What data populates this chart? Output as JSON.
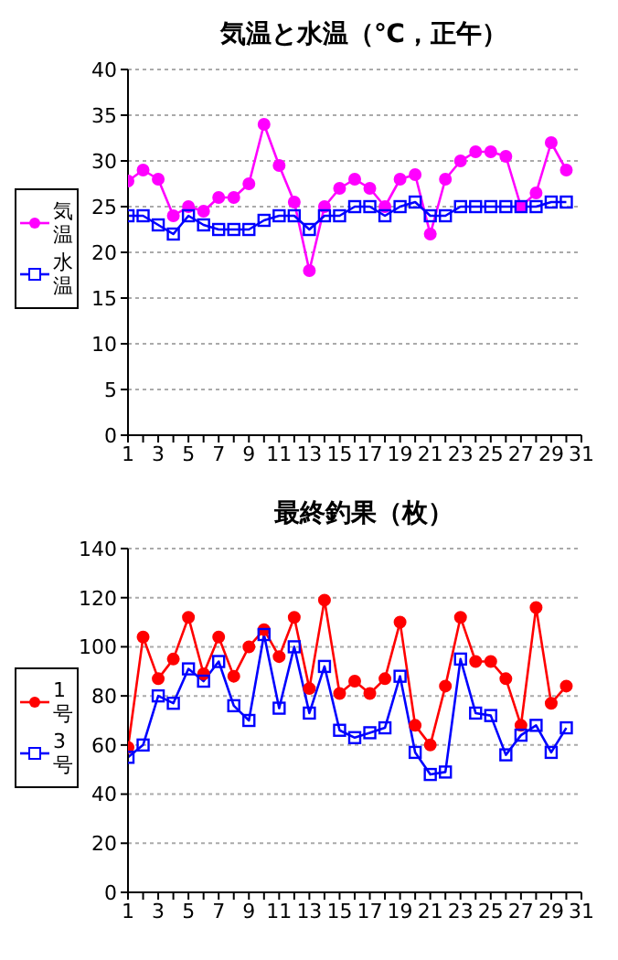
{
  "chart_data": [
    {
      "type": "line",
      "title": "気温と水温（℃，正午）",
      "x": [
        1,
        2,
        3,
        4,
        5,
        6,
        7,
        8,
        9,
        10,
        11,
        12,
        13,
        14,
        15,
        16,
        17,
        18,
        19,
        20,
        21,
        22,
        23,
        24,
        25,
        26,
        27,
        28,
        29,
        30
      ],
      "series": [
        {
          "name": "気温",
          "color": "#ff00ff",
          "marker": "circle",
          "values": [
            27.8,
            29,
            28,
            24,
            25,
            24.5,
            26,
            26,
            27.5,
            34,
            29.5,
            25.5,
            18,
            25,
            27,
            28,
            27,
            25,
            28,
            28.5,
            22,
            28,
            30,
            31,
            31,
            30.5,
            25,
            26.5,
            32,
            29
          ]
        },
        {
          "name": "水温",
          "color": "#0000ff",
          "marker": "square",
          "values": [
            24,
            24,
            23,
            22,
            24,
            23,
            22.5,
            22.5,
            22.5,
            23.5,
            24,
            24,
            22.5,
            24,
            24,
            25,
            25,
            24,
            25,
            25.5,
            24,
            24,
            25,
            25,
            25,
            25,
            25,
            25,
            25.5,
            25.5
          ]
        }
      ],
      "xlim": [
        1,
        31
      ],
      "xticks": [
        1,
        {
          "value": 2,
          "label": null
        },
        3,
        {
          "value": 4,
          "label": null
        },
        5,
        {
          "value": 6,
          "label": null
        },
        7,
        {
          "value": 8,
          "label": null
        },
        9,
        {
          "value": 10,
          "label": null
        },
        11,
        {
          "value": 12,
          "label": null
        },
        13,
        {
          "value": 14,
          "label": null
        },
        15,
        {
          "value": 16,
          "label": null
        },
        17,
        {
          "value": 18,
          "label": null
        },
        19,
        {
          "value": 20,
          "label": null
        },
        21,
        {
          "value": 22,
          "label": null
        },
        23,
        {
          "value": 24,
          "label": null
        },
        25,
        {
          "value": 26,
          "label": null
        },
        27,
        {
          "value": 28,
          "label": null
        },
        29,
        {
          "value": 30,
          "label": null
        },
        31
      ],
      "ylim": [
        0,
        40
      ],
      "yticks": [
        0,
        5,
        10,
        15,
        20,
        25,
        30,
        35,
        40
      ],
      "grid": "y",
      "legend": "left"
    },
    {
      "type": "line",
      "title": "最終釣果（枚）",
      "x": [
        1,
        2,
        3,
        4,
        5,
        6,
        7,
        8,
        9,
        10,
        11,
        12,
        13,
        14,
        15,
        16,
        17,
        18,
        19,
        20,
        21,
        22,
        23,
        24,
        25,
        26,
        27,
        28,
        29,
        30
      ],
      "series": [
        {
          "name": "1号",
          "color": "#ff0000",
          "marker": "circle",
          "values": [
            59,
            104,
            87,
            95,
            112,
            89,
            104,
            88,
            100,
            107,
            96,
            112,
            83,
            119,
            81,
            86,
            81,
            87,
            110,
            68,
            60,
            84,
            112,
            94,
            94,
            87,
            68,
            116,
            77,
            84
          ]
        },
        {
          "name": "3号",
          "color": "#0000ff",
          "marker": "square",
          "values": [
            55,
            60,
            80,
            77,
            91,
            86,
            94,
            76,
            70,
            105,
            75,
            100,
            73,
            92,
            66,
            63,
            65,
            67,
            88,
            57,
            48,
            49,
            95,
            73,
            72,
            56,
            64,
            68,
            57,
            67
          ]
        }
      ],
      "xlim": [
        1,
        31
      ],
      "xticks": [
        1,
        {
          "value": 2,
          "label": null
        },
        3,
        {
          "value": 4,
          "label": null
        },
        5,
        {
          "value": 6,
          "label": null
        },
        7,
        {
          "value": 8,
          "label": null
        },
        9,
        {
          "value": 10,
          "label": null
        },
        11,
        {
          "value": 12,
          "label": null
        },
        13,
        {
          "value": 14,
          "label": null
        },
        15,
        {
          "value": 16,
          "label": null
        },
        17,
        {
          "value": 18,
          "label": null
        },
        19,
        {
          "value": 20,
          "label": null
        },
        21,
        {
          "value": 22,
          "label": null
        },
        23,
        {
          "value": 24,
          "label": null
        },
        25,
        {
          "value": 26,
          "label": null
        },
        27,
        {
          "value": 28,
          "label": null
        },
        29,
        {
          "value": 30,
          "label": null
        },
        31
      ],
      "ylim": [
        0,
        140
      ],
      "yticks": [
        0,
        20,
        40,
        60,
        80,
        100,
        120,
        140
      ],
      "grid": "y",
      "legend": "left"
    }
  ]
}
